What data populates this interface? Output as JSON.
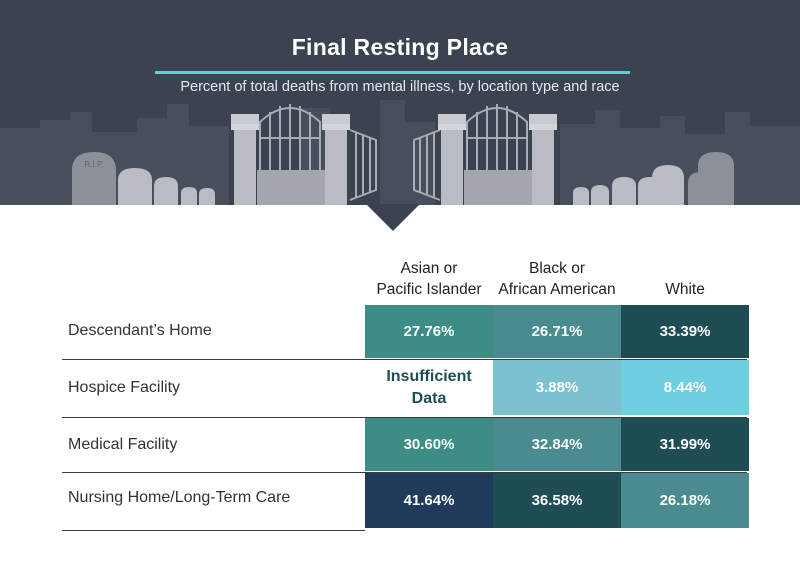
{
  "header": {
    "title": "Final Resting Place",
    "subtitle": "Percent of total deaths from mental illness, by location type and race",
    "tombstone_text": "R.I.P."
  },
  "colors": {
    "header_bg": "#3b4250",
    "accent_rule": "#5fcfd8",
    "scale": [
      "#ffffff",
      "#7cc1cf",
      "#6ecfe0",
      "#4a8b90",
      "#3d8d86",
      "#1f4d54",
      "#203a5c"
    ]
  },
  "chart_data": {
    "type": "table",
    "title": "Final Resting Place",
    "subtitle": "Percent of total deaths from mental illness, by location type and race",
    "columns": [
      "Asian or Pacific Islander",
      "Black or African American",
      "White"
    ],
    "column_display": [
      [
        "Asian or",
        "Pacific Islander"
      ],
      [
        "Black or",
        "African American"
      ],
      [
        "White"
      ]
    ],
    "rows": [
      {
        "label": "Descendant’s Home",
        "values": [
          "27.76%",
          "26.71%",
          "33.39%"
        ],
        "colors": [
          "#3d8d86",
          "#4a8b90",
          "#1f4d54"
        ]
      },
      {
        "label": "Hospice Facility",
        "values": [
          "Insufficient Data",
          "3.88%",
          "8.44%"
        ],
        "colors": [
          "#ffffff",
          "#7cc1cf",
          "#6ecfe0"
        ]
      },
      {
        "label": "Medical Facility",
        "values": [
          "30.60%",
          "32.84%",
          "31.99%"
        ],
        "colors": [
          "#3d8d86",
          "#4a8b90",
          "#1f4d54"
        ]
      },
      {
        "label": "Nursing Home/Long-Term Care",
        "values": [
          "41.64%",
          "36.58%",
          "26.18%"
        ],
        "colors": [
          "#203a5c",
          "#1f4d54",
          "#4a8b90"
        ]
      }
    ]
  }
}
